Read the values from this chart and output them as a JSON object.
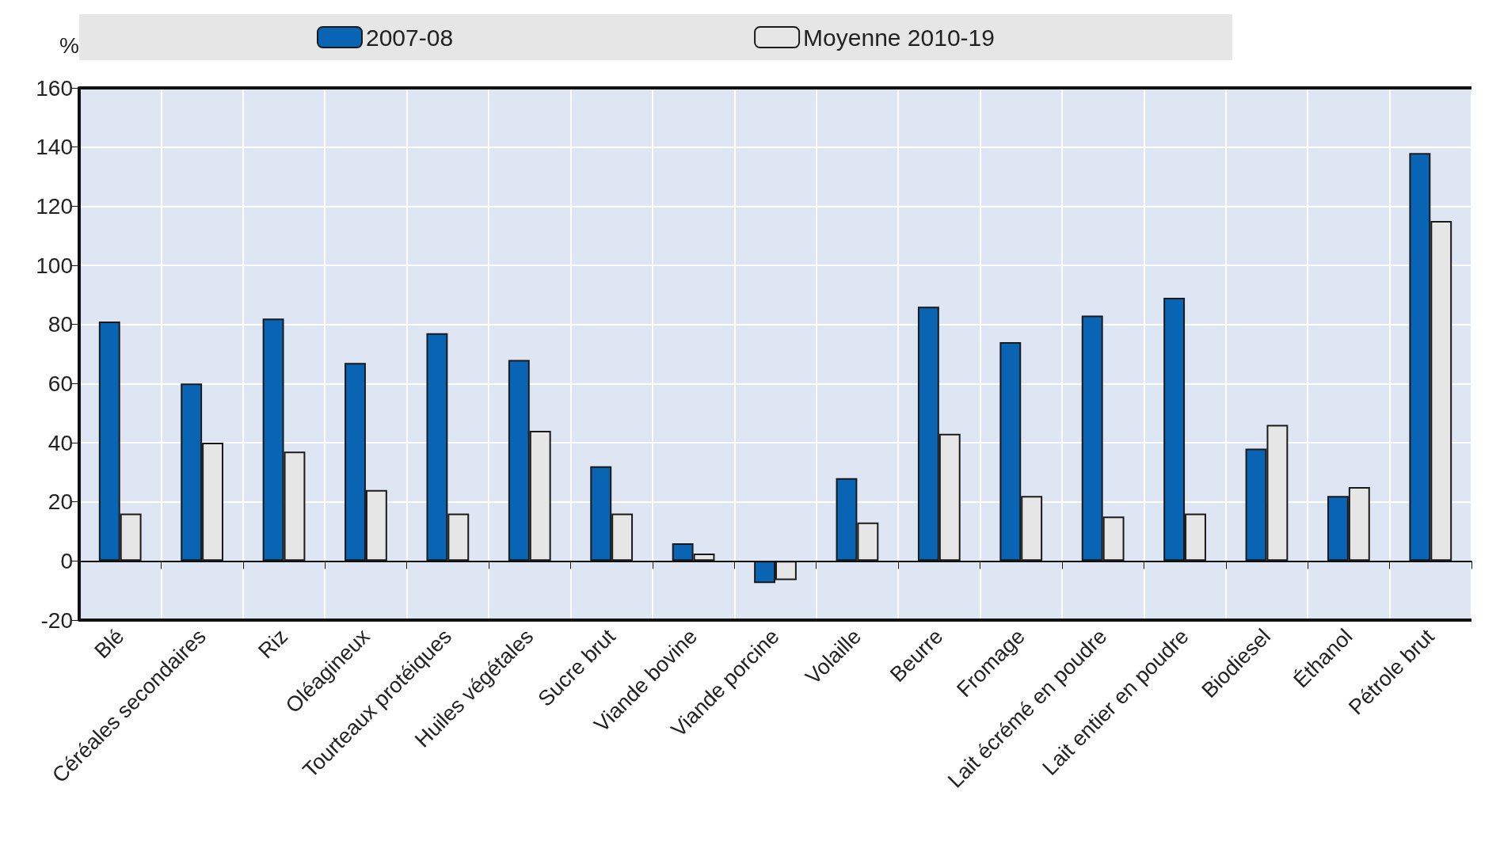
{
  "chart_data": {
    "type": "bar",
    "ylabel": "%",
    "categories": [
      "Blé",
      "Céréales secondaires",
      "Riz",
      "Oléagineux",
      "Tourteaux protéiques",
      "Huiles végétales",
      "Sucre brut",
      "Viande bovine",
      "Viande porcine",
      "Volaille",
      "Beurre",
      "Fromage",
      "Lait écrémé en poudre",
      "Lait entier en poudre",
      "Biodiesel",
      "Éthanol",
      "Pétrole brut"
    ],
    "series": [
      {
        "name": "2007-08",
        "color": "#0a64b4",
        "values": [
          81,
          60,
          82,
          67,
          77,
          68,
          32,
          6,
          -7.5,
          28,
          86,
          74,
          83,
          89,
          38,
          22,
          138
        ]
      },
      {
        "name": "Moyenne 2010-19",
        "color": "#e6e6e6",
        "values": [
          16,
          40,
          37,
          24,
          16,
          44,
          16,
          2.5,
          -6.5,
          13,
          43,
          22,
          15,
          16,
          46,
          25,
          115
        ]
      }
    ],
    "ylim": [
      -20,
      160
    ],
    "yticks": [
      -20,
      0,
      20,
      40,
      60,
      80,
      100,
      120,
      140,
      160
    ],
    "grid": true,
    "legend": "top"
  }
}
